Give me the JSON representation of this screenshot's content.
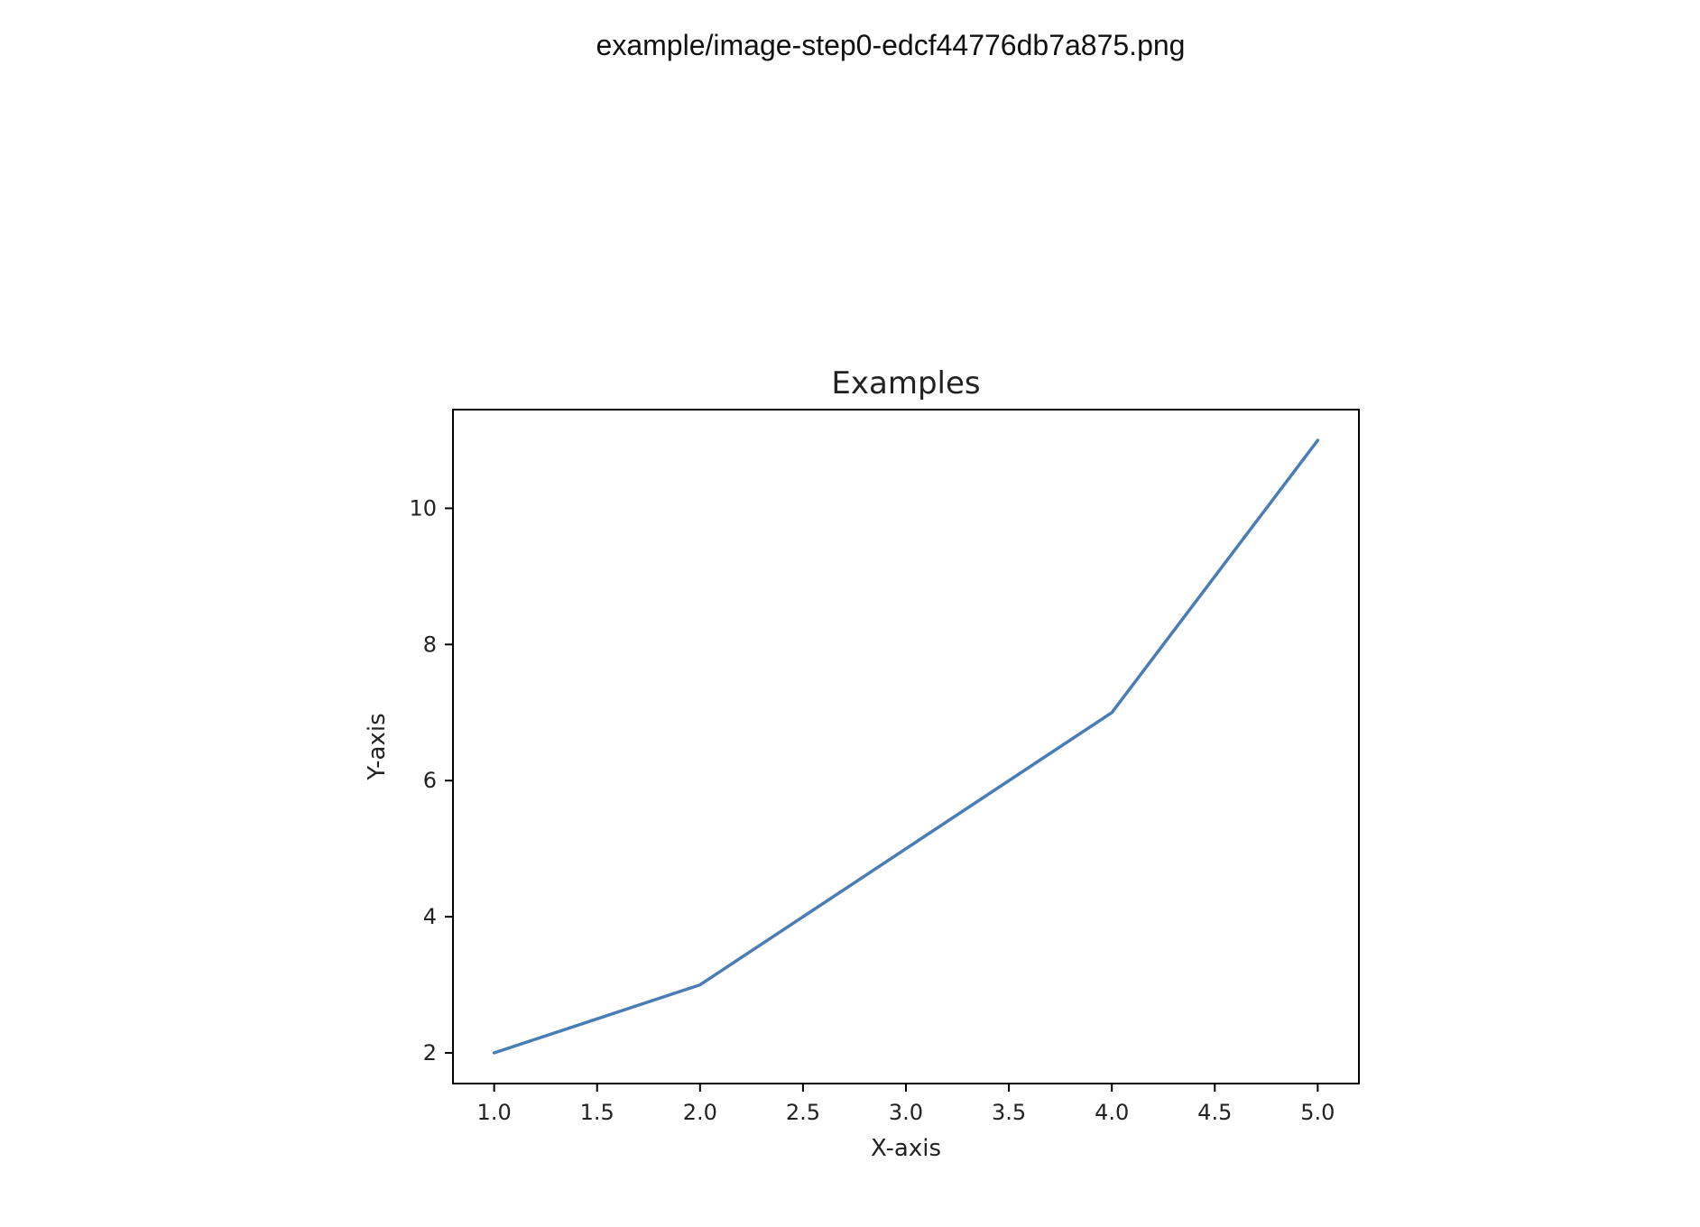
{
  "header": {
    "file_title": "example/image-step0-edcf44776db7a875.png"
  },
  "colors": {
    "line": "#4a7db5",
    "axis": "#000000",
    "text": "#222222"
  },
  "chart_data": {
    "type": "line",
    "title": "Examples",
    "xlabel": "X-axis",
    "ylabel": "Y-axis",
    "x": [
      1,
      2,
      3,
      4,
      5
    ],
    "series": [
      {
        "values": [
          2,
          3,
          5,
          7,
          11
        ]
      }
    ],
    "xlim": [
      0.8,
      5.2
    ],
    "ylim": [
      1.55,
      11.45
    ],
    "xticks": [
      1.0,
      1.5,
      2.0,
      2.5,
      3.0,
      3.5,
      4.0,
      4.5,
      5.0
    ],
    "xtick_labels": [
      "1.0",
      "1.5",
      "2.0",
      "2.5",
      "3.0",
      "3.5",
      "4.0",
      "4.5",
      "5.0"
    ],
    "yticks": [
      2,
      4,
      6,
      8,
      10
    ],
    "ytick_labels": [
      "2",
      "4",
      "6",
      "8",
      "10"
    ],
    "grid": false,
    "legend": "none"
  }
}
